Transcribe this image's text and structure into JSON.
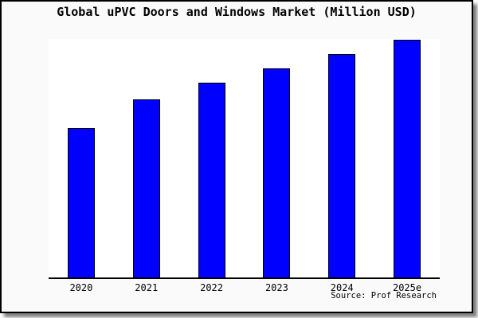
{
  "window": {
    "background_color": "#fafafa",
    "border_color": "#000000",
    "shadow_color": "#888888"
  },
  "chart_data": {
    "type": "bar",
    "title": "Global uPVC Doors and Windows Market (Million USD)",
    "categories": [
      "2020",
      "2021",
      "2022",
      "2023",
      "2024",
      "2025e"
    ],
    "values": [
      63,
      75,
      82,
      88,
      94,
      100
    ],
    "value_scale_note": "no y-axis tick labels shown; values are relative bar heights (% of tallest 2025e bar)",
    "ylim": [
      0,
      101
    ],
    "xlabel": "",
    "ylabel": "",
    "y_tick_labels": [],
    "gridlines": false,
    "legend": false,
    "bar_color": "#0000ff",
    "bar_border_color": "#000000",
    "plot_background": "#ffffff",
    "axis_line_color": "#000000",
    "source": "Source: Prof Research"
  }
}
